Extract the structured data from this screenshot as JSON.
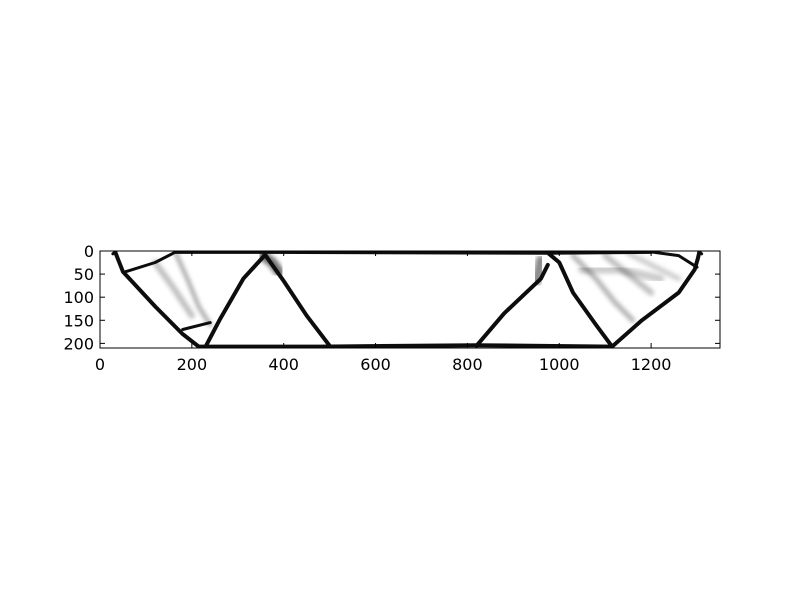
{
  "chart_data": {
    "type": "heatmap",
    "title": "",
    "xlabel": "",
    "ylabel": "",
    "xlim": [
      0,
      1350
    ],
    "ylim": [
      210,
      0
    ],
    "x_ticks": [
      0,
      200,
      400,
      600,
      800,
      1000,
      1200
    ],
    "y_ticks": [
      0,
      50,
      100,
      150,
      200
    ],
    "x_tick_labels": [
      "0",
      "200",
      "400",
      "600",
      "800",
      "1000",
      "1200"
    ],
    "y_tick_labels": [
      "0",
      "50",
      "100",
      "150",
      "200"
    ],
    "grid": false,
    "colormap": "gray_r",
    "structure_members": [
      {
        "name": "top-chord",
        "width": 4,
        "points": [
          [
            165,
            2
          ],
          [
            358,
            2
          ],
          [
            975,
            4
          ],
          [
            1200,
            2
          ]
        ]
      },
      {
        "name": "bottom-chord",
        "width": 4,
        "points": [
          [
            215,
            207
          ],
          [
            480,
            207
          ],
          [
            820,
            204
          ],
          [
            1115,
            207
          ]
        ]
      },
      {
        "name": "left-outer-edge",
        "width": 4,
        "points": [
          [
            33,
            2
          ],
          [
            40,
            20
          ],
          [
            50,
            45
          ],
          [
            120,
            120
          ],
          [
            180,
            180
          ],
          [
            215,
            207
          ]
        ]
      },
      {
        "name": "left-inner-diagonal",
        "width": 4,
        "points": [
          [
            230,
            207
          ],
          [
            260,
            150
          ],
          [
            312,
            60
          ],
          [
            358,
            10
          ]
        ]
      },
      {
        "name": "left-top-brace",
        "width": 3,
        "points": [
          [
            55,
            45
          ],
          [
            120,
            25
          ],
          [
            165,
            2
          ]
        ]
      },
      {
        "name": "left-lower-brace",
        "width": 3,
        "points": [
          [
            180,
            170
          ],
          [
            240,
            155
          ]
        ]
      },
      {
        "name": "center-left-diagonal",
        "width": 4,
        "points": [
          [
            358,
            6
          ],
          [
            400,
            65
          ],
          [
            450,
            140
          ],
          [
            500,
            205
          ]
        ]
      },
      {
        "name": "center-right-diagonal",
        "width": 4,
        "points": [
          [
            820,
            205
          ],
          [
            880,
            135
          ],
          [
            960,
            60
          ],
          [
            975,
            30
          ]
        ]
      },
      {
        "name": "right-inner-diagonal",
        "width": 4,
        "points": [
          [
            975,
            4
          ],
          [
            1000,
            25
          ],
          [
            1030,
            90
          ],
          [
            1080,
            160
          ],
          [
            1115,
            207
          ]
        ]
      },
      {
        "name": "right-outer-edge",
        "width": 4,
        "points": [
          [
            1115,
            207
          ],
          [
            1180,
            150
          ],
          [
            1260,
            90
          ],
          [
            1295,
            40
          ],
          [
            1302,
            15
          ],
          [
            1305,
            2
          ]
        ]
      },
      {
        "name": "right-top-brace",
        "width": 3,
        "points": [
          [
            1200,
            2
          ],
          [
            1260,
            10
          ],
          [
            1300,
            35
          ]
        ]
      },
      {
        "name": "left-end-post",
        "width": 3,
        "points": [
          [
            33,
            2
          ],
          [
            28,
            6
          ]
        ]
      },
      {
        "name": "right-end-post",
        "width": 3,
        "points": [
          [
            1305,
            2
          ],
          [
            1310,
            6
          ]
        ]
      }
    ],
    "faint_members": [
      {
        "name": "left-fan-1",
        "opacity": 0.35,
        "width": 4,
        "points": [
          [
            165,
            5
          ],
          [
            190,
            60
          ],
          [
            215,
            120
          ],
          [
            240,
            160
          ]
        ]
      },
      {
        "name": "left-fan-2",
        "opacity": 0.25,
        "width": 6,
        "points": [
          [
            120,
            25
          ],
          [
            160,
            80
          ],
          [
            200,
            140
          ]
        ]
      },
      {
        "name": "right-fan-1",
        "opacity": 0.3,
        "width": 5,
        "points": [
          [
            1030,
            10
          ],
          [
            1080,
            60
          ],
          [
            1120,
            110
          ],
          [
            1160,
            150
          ]
        ]
      },
      {
        "name": "right-fan-2",
        "opacity": 0.25,
        "width": 6,
        "points": [
          [
            1100,
            10
          ],
          [
            1150,
            50
          ],
          [
            1200,
            90
          ]
        ]
      },
      {
        "name": "right-fan-3",
        "opacity": 0.2,
        "width": 8,
        "points": [
          [
            1050,
            40
          ],
          [
            1130,
            40
          ],
          [
            1220,
            60
          ]
        ]
      },
      {
        "name": "right-fan-4",
        "opacity": 0.2,
        "width": 5,
        "points": [
          [
            1150,
            5
          ],
          [
            1200,
            30
          ],
          [
            1260,
            60
          ]
        ]
      },
      {
        "name": "gusset-left",
        "opacity": 0.55,
        "width": 10,
        "points": [
          [
            355,
            10
          ],
          [
            375,
            25
          ],
          [
            390,
            45
          ]
        ]
      },
      {
        "name": "gusset-right",
        "opacity": 0.45,
        "width": 10,
        "points": [
          [
            960,
            20
          ],
          [
            955,
            45
          ],
          [
            950,
            65
          ]
        ]
      }
    ]
  }
}
